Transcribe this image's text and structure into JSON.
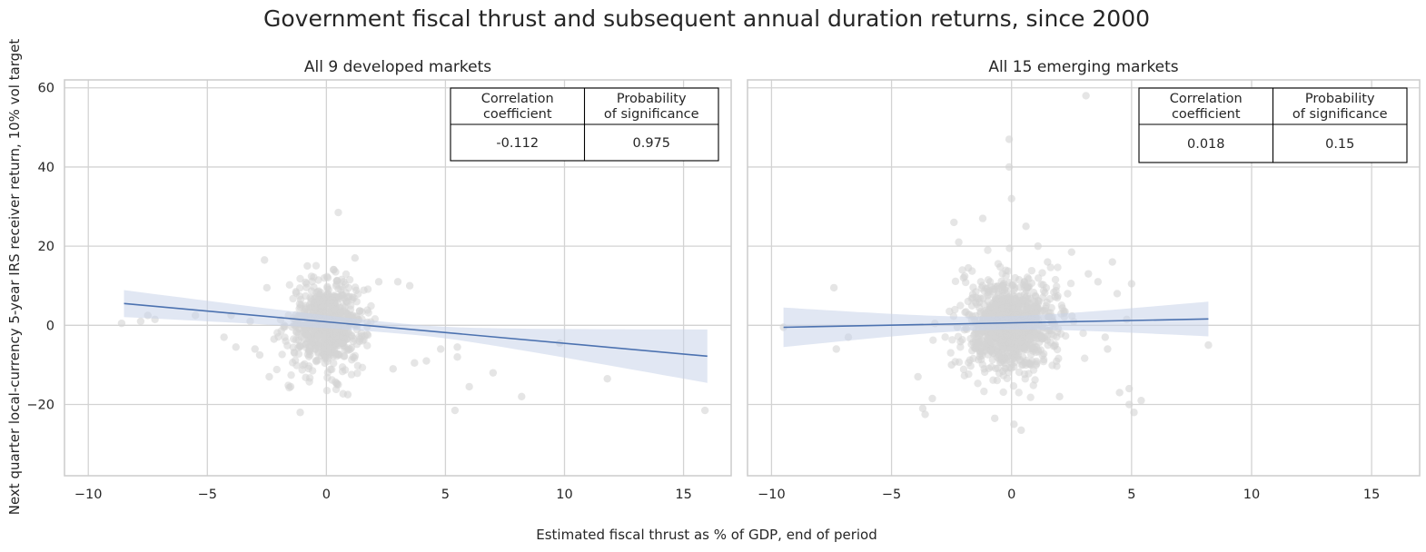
{
  "figure": {
    "title": "Government fiscal thrust and subsequent annual duration returns, since 2000",
    "xlabel": "Estimated fiscal thrust as % of GDP, end of period",
    "ylabel": "Next quarter local-currency 5-year IRS receiver return, 10% vol target"
  },
  "colors": {
    "background": "#ffffff",
    "grid": "#d3d3d3",
    "frame": "#cccccc",
    "points": "#d3d3d3",
    "regression_line": "#4c72b0",
    "confidence_band": "#c8d4ea",
    "text": "#262626"
  },
  "chart_data": [
    {
      "type": "scatter",
      "title": "All 9 developed markets",
      "xlim": [
        -11,
        17
      ],
      "ylim": [
        -38,
        62
      ],
      "xticks": [
        -10,
        -5,
        0,
        5,
        10,
        15
      ],
      "yticks": [
        -20,
        0,
        20,
        40,
        60
      ],
      "grid": true,
      "table": {
        "headers": [
          "Correlation\ncoefficient",
          "Probability\nof significance"
        ],
        "values": [
          "-0.112",
          "0.975"
        ],
        "placement": "top-right"
      },
      "regression": {
        "x": [
          -8.5,
          16.0
        ],
        "y": [
          5.5,
          -7.8
        ],
        "band_lower": [
          1.5,
          -13.5
        ],
        "band_upper": [
          8.3,
          0.0
        ]
      },
      "outliers": [
        [
          -8.6,
          0.5
        ],
        [
          -7.8,
          1.0
        ],
        [
          -7.5,
          2.5
        ],
        [
          -7.2,
          1.5
        ],
        [
          -5.5,
          2.5
        ],
        [
          -4.3,
          -3.0
        ],
        [
          -4.0,
          2.5
        ],
        [
          -3.8,
          -5.5
        ],
        [
          -3.2,
          1.0
        ],
        [
          -3.0,
          -6.0
        ],
        [
          -2.6,
          16.5
        ],
        [
          -2.8,
          -7.5
        ],
        [
          -2.5,
          9.5
        ],
        [
          -2.4,
          -13.0
        ],
        [
          -2.2,
          -3.5
        ],
        [
          -1.5,
          -15.5
        ],
        [
          -1.1,
          -22.0
        ],
        [
          -0.8,
          15.0
        ],
        [
          0.5,
          28.5
        ],
        [
          0.9,
          -17.5
        ],
        [
          1.2,
          17.0
        ],
        [
          2.2,
          11.0
        ],
        [
          3.0,
          11.0
        ],
        [
          2.8,
          -11.0
        ],
        [
          3.5,
          10.0
        ],
        [
          3.7,
          -9.5
        ],
        [
          4.2,
          -9.0
        ],
        [
          4.8,
          -6.0
        ],
        [
          5.5,
          -5.5
        ],
        [
          5.5,
          -8.0
        ],
        [
          5.4,
          -21.5
        ],
        [
          6.0,
          -15.5
        ],
        [
          7.0,
          -12.0
        ],
        [
          8.2,
          -18.0
        ],
        [
          9.8,
          -4.5
        ],
        [
          11.8,
          -13.5
        ],
        [
          15.9,
          -21.5
        ]
      ],
      "cloud": {
        "n": 650,
        "mean_x": 0,
        "sd_x": 0.8,
        "mean_y": 0,
        "sd_y": 5.5
      }
    },
    {
      "type": "scatter",
      "title": "All 15 emerging markets",
      "xlim": [
        -11,
        17
      ],
      "ylim": [
        -38,
        62
      ],
      "xticks": [
        -10,
        -5,
        0,
        5,
        10,
        15
      ],
      "yticks": [
        -20,
        0,
        20,
        40,
        60
      ],
      "grid": true,
      "table": {
        "headers": [
          "Correlation\ncoefficient",
          "Probability\nof significance"
        ],
        "values": [
          "0.018",
          "0.15"
        ],
        "placement": "top-right"
      },
      "regression": {
        "x": [
          -9.5,
          8.2
        ],
        "y": [
          -0.5,
          1.6
        ],
        "band_lower": [
          -6.0,
          -2.5
        ],
        "band_upper": [
          4.0,
          6.3
        ]
      },
      "outliers": [
        [
          -9.5,
          -0.5
        ],
        [
          -7.4,
          9.5
        ],
        [
          -7.3,
          -6.0
        ],
        [
          -6.8,
          -3.0
        ],
        [
          -3.9,
          -13.0
        ],
        [
          -3.7,
          -21.0
        ],
        [
          -3.6,
          -22.5
        ],
        [
          -3.3,
          -18.5
        ],
        [
          -2.4,
          26.0
        ],
        [
          -2.2,
          21.0
        ],
        [
          -2.5,
          -10.0
        ],
        [
          -2.0,
          12.0
        ],
        [
          -1.8,
          14.5
        ],
        [
          -1.2,
          27.0
        ],
        [
          -0.1,
          47.0
        ],
        [
          -0.1,
          40.0
        ],
        [
          0.0,
          32.0
        ],
        [
          -0.7,
          -23.5
        ],
        [
          0.1,
          -25.0
        ],
        [
          0.6,
          25.0
        ],
        [
          0.4,
          -26.5
        ],
        [
          1.1,
          20.0
        ],
        [
          1.5,
          16.0
        ],
        [
          2.0,
          -18.0
        ],
        [
          2.5,
          18.5
        ],
        [
          3.1,
          58.0
        ],
        [
          3.2,
          13.0
        ],
        [
          3.6,
          11.0
        ],
        [
          3.9,
          -3.0
        ],
        [
          4.0,
          -6.0
        ],
        [
          4.2,
          16.0
        ],
        [
          4.4,
          8.0
        ],
        [
          4.8,
          1.5
        ],
        [
          5.0,
          10.5
        ],
        [
          4.9,
          -16.0
        ],
        [
          5.1,
          -22.0
        ],
        [
          4.9,
          -20.0
        ],
        [
          4.5,
          -17.0
        ],
        [
          5.4,
          -19.0
        ],
        [
          8.2,
          -5.0
        ]
      ],
      "cloud": {
        "n": 900,
        "mean_x": 0,
        "sd_x": 0.95,
        "mean_y": 0,
        "sd_y": 6.0
      }
    }
  ]
}
